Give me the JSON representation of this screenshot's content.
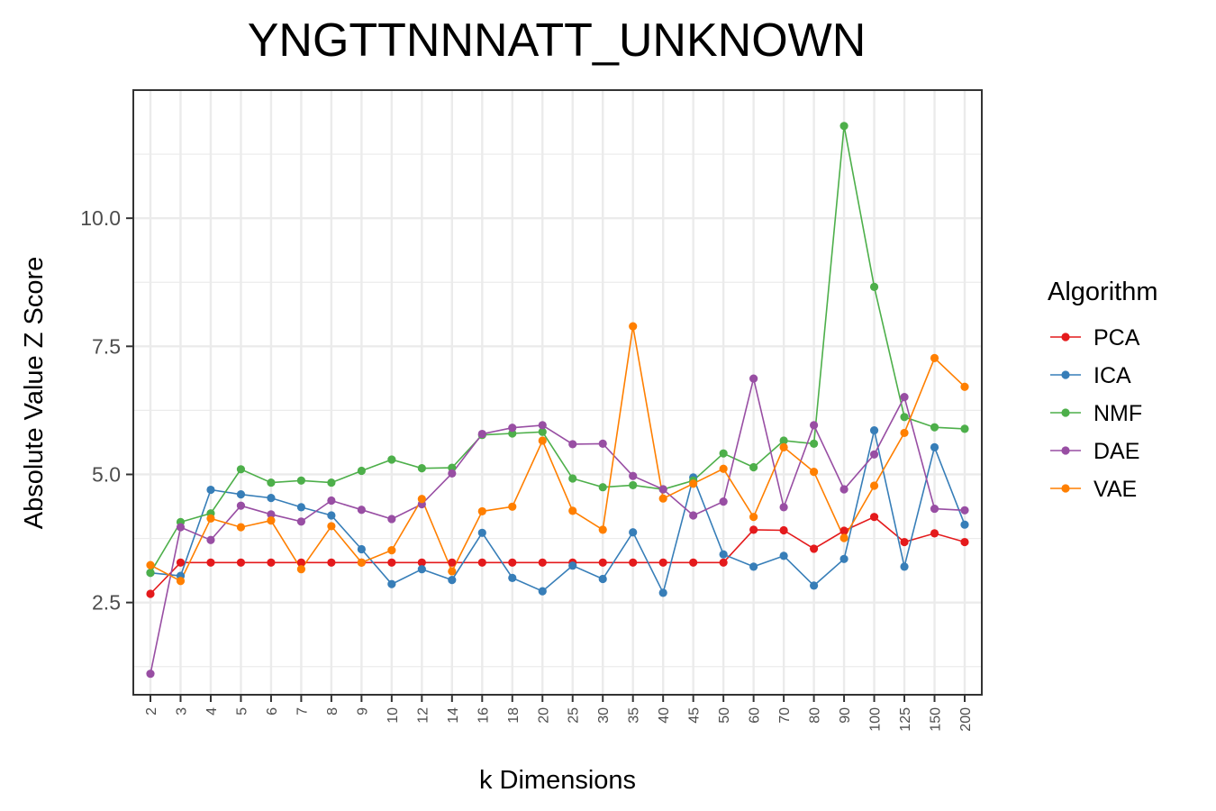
{
  "chart_data": {
    "type": "line",
    "title": "YNGTTNNNATT_UNKNOWN",
    "xlabel": "k Dimensions",
    "ylabel": "Absolute Value Z Score",
    "categories": [
      "2",
      "3",
      "4",
      "5",
      "6",
      "7",
      "8",
      "9",
      "10",
      "12",
      "14",
      "16",
      "18",
      "20",
      "25",
      "30",
      "35",
      "40",
      "45",
      "50",
      "60",
      "70",
      "80",
      "90",
      "100",
      "125",
      "150",
      "200"
    ],
    "ylim": [
      0.7,
      12.5
    ],
    "yticks": [
      2.5,
      5.0,
      7.5,
      10.0
    ],
    "ytick_labels": [
      "2.5",
      "5.0",
      "7.5",
      "10.0"
    ],
    "grid": true,
    "legend": {
      "title": "Algorithm",
      "position": "right"
    },
    "series": [
      {
        "name": "PCA",
        "color": "#e41a1c",
        "values": [
          2.67,
          3.28,
          3.28,
          3.28,
          3.28,
          3.28,
          3.28,
          3.28,
          3.28,
          3.28,
          3.28,
          3.28,
          3.28,
          3.28,
          3.28,
          3.28,
          3.28,
          3.28,
          3.28,
          3.28,
          3.92,
          3.91,
          3.55,
          3.9,
          4.17,
          3.68,
          3.85,
          3.68
        ]
      },
      {
        "name": "ICA",
        "color": "#377eb8",
        "values": [
          3.08,
          3.02,
          4.7,
          4.61,
          4.54,
          4.36,
          4.2,
          3.54,
          2.86,
          3.15,
          2.94,
          3.86,
          2.98,
          2.72,
          3.22,
          2.96,
          3.87,
          2.69,
          4.94,
          3.44,
          3.2,
          3.41,
          2.83,
          3.35,
          5.86,
          3.2,
          5.53,
          4.02
        ]
      },
      {
        "name": "NMF",
        "color": "#4daf4a",
        "values": [
          3.08,
          4.07,
          4.24,
          5.1,
          4.84,
          4.88,
          4.84,
          5.07,
          5.29,
          5.12,
          5.13,
          5.77,
          5.8,
          5.83,
          4.92,
          4.75,
          4.79,
          4.71,
          4.88,
          5.41,
          5.14,
          5.66,
          5.6,
          11.8,
          8.66,
          6.12,
          5.92,
          5.89
        ]
      },
      {
        "name": "DAE",
        "color": "#984ea3",
        "values": [
          1.11,
          3.97,
          3.72,
          4.39,
          4.22,
          4.08,
          4.49,
          4.31,
          4.13,
          4.42,
          5.02,
          5.79,
          5.91,
          5.96,
          5.59,
          5.6,
          4.97,
          4.71,
          4.2,
          4.47,
          6.87,
          4.36,
          5.96,
          4.71,
          5.39,
          6.51,
          4.33,
          4.3
        ]
      },
      {
        "name": "VAE",
        "color": "#ff7f00",
        "values": [
          3.23,
          2.92,
          4.14,
          3.97,
          4.1,
          3.15,
          3.99,
          3.28,
          3.52,
          4.52,
          3.11,
          4.28,
          4.37,
          5.66,
          4.29,
          3.92,
          7.89,
          4.53,
          4.82,
          5.11,
          4.17,
          5.53,
          5.05,
          3.76,
          4.78,
          5.81,
          7.27,
          6.71
        ]
      }
    ]
  }
}
